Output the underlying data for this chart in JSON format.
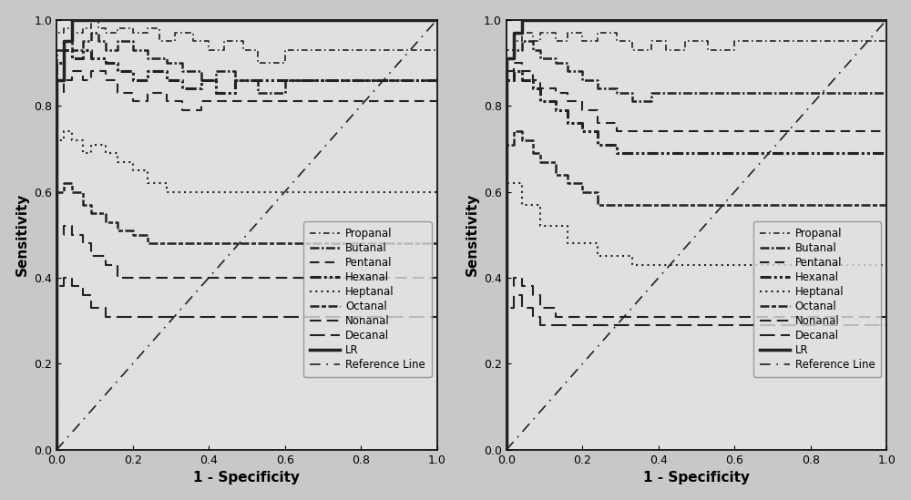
{
  "fig_width": 10.0,
  "fig_height": 5.49,
  "bg_color": "#c8c8c8",
  "plot_bg_color": "#e0e0e0",
  "line_color": "#222222",
  "xlabel": "1 - Specificity",
  "ylabel": "Sensitivity",
  "xlim": [
    0.0,
    1.0
  ],
  "ylim": [
    0.0,
    1.0
  ],
  "xticks": [
    0.0,
    0.2,
    0.4,
    0.6,
    0.8,
    1.0
  ],
  "yticks": [
    0.0,
    0.2,
    0.4,
    0.6,
    0.8,
    1.0
  ],
  "left_curves": {
    "LR": {
      "fpr": [
        0.0,
        0.0,
        0.02,
        0.02,
        0.04,
        0.04,
        1.0
      ],
      "tpr": [
        0.0,
        0.86,
        0.86,
        0.95,
        0.95,
        1.0,
        1.0
      ],
      "linestyle": "solid",
      "linewidth": 2.5,
      "zorder": 5
    },
    "Propanal": {
      "fpr": [
        0.0,
        0.0,
        0.02,
        0.02,
        0.04,
        0.04,
        0.07,
        0.07,
        0.09,
        0.09,
        0.11,
        0.11,
        0.13,
        0.13,
        0.16,
        0.16,
        0.2,
        0.2,
        0.24,
        0.24,
        0.27,
        0.27,
        0.31,
        0.31,
        0.36,
        0.36,
        0.4,
        0.4,
        0.44,
        0.44,
        0.49,
        0.49,
        0.53,
        0.53,
        0.6,
        0.6,
        1.0
      ],
      "tpr": [
        0.0,
        0.97,
        0.97,
        0.98,
        0.98,
        0.97,
        0.97,
        0.98,
        0.98,
        1.0,
        1.0,
        0.98,
        0.98,
        0.97,
        0.97,
        0.98,
        0.98,
        0.97,
        0.97,
        0.98,
        0.98,
        0.95,
        0.95,
        0.97,
        0.97,
        0.95,
        0.95,
        0.93,
        0.93,
        0.95,
        0.95,
        0.93,
        0.93,
        0.9,
        0.9,
        0.93,
        0.93
      ],
      "linestyle": "dashdot",
      "linewidth": 1.2,
      "zorder": 3
    },
    "Butanal": {
      "fpr": [
        0.0,
        0.0,
        0.02,
        0.02,
        0.04,
        0.04,
        0.07,
        0.07,
        0.09,
        0.09,
        0.11,
        0.11,
        0.13,
        0.13,
        0.16,
        0.16,
        0.2,
        0.2,
        0.24,
        0.24,
        0.29,
        0.29,
        0.33,
        0.33,
        0.38,
        0.38,
        0.42,
        0.42,
        0.47,
        0.47,
        0.53,
        0.53,
        0.6,
        0.6,
        1.0
      ],
      "tpr": [
        0.0,
        0.93,
        0.93,
        0.95,
        0.95,
        0.93,
        0.93,
        0.95,
        0.95,
        0.97,
        0.97,
        0.95,
        0.95,
        0.93,
        0.93,
        0.95,
        0.95,
        0.93,
        0.93,
        0.91,
        0.91,
        0.9,
        0.9,
        0.88,
        0.88,
        0.86,
        0.86,
        0.88,
        0.88,
        0.86,
        0.86,
        0.83,
        0.83,
        0.86,
        0.86
      ],
      "linestyle": "dashdot",
      "linewidth": 1.8,
      "zorder": 3
    },
    "Pentanal": {
      "fpr": [
        0.0,
        0.0,
        0.02,
        0.02,
        0.04,
        0.04,
        0.07,
        0.07,
        0.09,
        0.09,
        0.13,
        0.13,
        0.16,
        0.16,
        0.2,
        0.2,
        0.24,
        0.24,
        0.29,
        0.29,
        0.33,
        0.33,
        0.38,
        0.38,
        1.0
      ],
      "tpr": [
        0.0,
        0.83,
        0.83,
        0.86,
        0.86,
        0.88,
        0.88,
        0.86,
        0.86,
        0.88,
        0.88,
        0.86,
        0.86,
        0.83,
        0.83,
        0.81,
        0.81,
        0.83,
        0.83,
        0.81,
        0.81,
        0.79,
        0.79,
        0.81,
        0.81
      ],
      "linestyle": "dashed",
      "linewidth": 1.5,
      "zorder": 3
    },
    "Hexanal": {
      "fpr": [
        0.0,
        0.0,
        0.02,
        0.02,
        0.04,
        0.04,
        0.07,
        0.07,
        0.09,
        0.09,
        0.13,
        0.13,
        0.16,
        0.16,
        0.2,
        0.2,
        0.24,
        0.24,
        0.29,
        0.29,
        0.33,
        0.33,
        0.38,
        0.38,
        0.42,
        0.42,
        0.47,
        0.47,
        1.0
      ],
      "tpr": [
        0.0,
        0.9,
        0.9,
        0.93,
        0.93,
        0.91,
        0.91,
        0.93,
        0.93,
        0.91,
        0.91,
        0.9,
        0.9,
        0.88,
        0.88,
        0.86,
        0.86,
        0.88,
        0.88,
        0.86,
        0.86,
        0.84,
        0.84,
        0.86,
        0.86,
        0.83,
        0.83,
        0.86,
        0.86
      ],
      "linestyle": "dashdot",
      "linewidth": 2.2,
      "zorder": 3
    },
    "Heptanal": {
      "fpr": [
        0.0,
        0.0,
        0.02,
        0.02,
        0.04,
        0.04,
        0.07,
        0.07,
        0.09,
        0.09,
        0.13,
        0.13,
        0.16,
        0.16,
        0.2,
        0.2,
        0.24,
        0.24,
        0.29,
        0.29,
        1.0
      ],
      "tpr": [
        0.0,
        0.72,
        0.72,
        0.74,
        0.74,
        0.72,
        0.72,
        0.69,
        0.69,
        0.71,
        0.71,
        0.69,
        0.69,
        0.67,
        0.67,
        0.65,
        0.65,
        0.62,
        0.62,
        0.6,
        0.6
      ],
      "linestyle": "dotted",
      "linewidth": 1.5,
      "zorder": 3
    },
    "Octanal": {
      "fpr": [
        0.0,
        0.0,
        0.02,
        0.02,
        0.04,
        0.04,
        0.07,
        0.07,
        0.09,
        0.09,
        0.13,
        0.13,
        0.16,
        0.16,
        0.2,
        0.2,
        0.24,
        0.24,
        1.0
      ],
      "tpr": [
        0.0,
        0.6,
        0.6,
        0.62,
        0.62,
        0.6,
        0.6,
        0.57,
        0.57,
        0.55,
        0.55,
        0.53,
        0.53,
        0.51,
        0.51,
        0.5,
        0.5,
        0.48,
        0.48
      ],
      "linestyle": "dashdot",
      "linewidth": 1.8,
      "zorder": 3
    },
    "Nonanal": {
      "fpr": [
        0.0,
        0.0,
        0.02,
        0.02,
        0.04,
        0.04,
        0.07,
        0.07,
        0.09,
        0.09,
        0.13,
        0.13,
        0.16,
        0.16,
        1.0
      ],
      "tpr": [
        0.0,
        0.5,
        0.5,
        0.52,
        0.52,
        0.5,
        0.5,
        0.48,
        0.48,
        0.45,
        0.45,
        0.43,
        0.43,
        0.4,
        0.4
      ],
      "linestyle": "dashed",
      "linewidth": 1.5,
      "zorder": 3
    },
    "Decanal": {
      "fpr": [
        0.0,
        0.0,
        0.02,
        0.02,
        0.04,
        0.04,
        0.07,
        0.07,
        0.09,
        0.09,
        0.13,
        0.13,
        1.0
      ],
      "tpr": [
        0.0,
        0.38,
        0.38,
        0.4,
        0.4,
        0.38,
        0.38,
        0.36,
        0.36,
        0.33,
        0.33,
        0.31,
        0.31
      ],
      "linestyle": "dashed",
      "linewidth": 1.5,
      "zorder": 3
    }
  },
  "right_curves": {
    "LR": {
      "fpr": [
        0.0,
        0.0,
        0.02,
        0.02,
        0.04,
        0.04,
        1.0
      ],
      "tpr": [
        0.0,
        0.91,
        0.91,
        0.97,
        0.97,
        1.0,
        1.0
      ],
      "linestyle": "solid",
      "linewidth": 2.5,
      "zorder": 5
    },
    "Propanal": {
      "fpr": [
        0.0,
        0.0,
        0.02,
        0.02,
        0.04,
        0.04,
        0.07,
        0.07,
        0.09,
        0.09,
        0.13,
        0.13,
        0.16,
        0.16,
        0.2,
        0.2,
        0.24,
        0.24,
        0.29,
        0.29,
        0.33,
        0.33,
        0.38,
        0.38,
        0.42,
        0.42,
        0.47,
        0.47,
        0.53,
        0.53,
        0.6,
        0.6,
        1.0
      ],
      "tpr": [
        0.0,
        0.93,
        0.93,
        0.95,
        0.95,
        0.97,
        0.97,
        0.95,
        0.95,
        0.97,
        0.97,
        0.95,
        0.95,
        0.97,
        0.97,
        0.95,
        0.95,
        0.97,
        0.97,
        0.95,
        0.95,
        0.93,
        0.93,
        0.95,
        0.95,
        0.93,
        0.93,
        0.95,
        0.95,
        0.93,
        0.93,
        0.95,
        0.95
      ],
      "linestyle": "dashdot",
      "linewidth": 1.2,
      "zorder": 3
    },
    "Butanal": {
      "fpr": [
        0.0,
        0.0,
        0.02,
        0.02,
        0.04,
        0.04,
        0.07,
        0.07,
        0.09,
        0.09,
        0.13,
        0.13,
        0.16,
        0.16,
        0.2,
        0.2,
        0.24,
        0.24,
        0.29,
        0.29,
        0.33,
        0.33,
        0.38,
        0.38,
        1.0
      ],
      "tpr": [
        0.0,
        0.91,
        0.91,
        0.93,
        0.93,
        0.95,
        0.95,
        0.93,
        0.93,
        0.91,
        0.91,
        0.9,
        0.9,
        0.88,
        0.88,
        0.86,
        0.86,
        0.84,
        0.84,
        0.83,
        0.83,
        0.81,
        0.81,
        0.83,
        0.83
      ],
      "linestyle": "dashdot",
      "linewidth": 1.8,
      "zorder": 3
    },
    "Pentanal": {
      "fpr": [
        0.0,
        0.0,
        0.02,
        0.02,
        0.04,
        0.04,
        0.07,
        0.07,
        0.09,
        0.09,
        0.13,
        0.13,
        0.16,
        0.16,
        0.2,
        0.2,
        0.24,
        0.24,
        0.29,
        0.29,
        1.0
      ],
      "tpr": [
        0.0,
        0.88,
        0.88,
        0.9,
        0.9,
        0.88,
        0.88,
        0.86,
        0.86,
        0.84,
        0.84,
        0.83,
        0.83,
        0.81,
        0.81,
        0.79,
        0.79,
        0.76,
        0.76,
        0.74,
        0.74
      ],
      "linestyle": "dashed",
      "linewidth": 1.5,
      "zorder": 3
    },
    "Hexanal": {
      "fpr": [
        0.0,
        0.0,
        0.02,
        0.02,
        0.04,
        0.04,
        0.07,
        0.07,
        0.09,
        0.09,
        0.13,
        0.13,
        0.16,
        0.16,
        0.2,
        0.2,
        0.24,
        0.24,
        0.29,
        0.29,
        1.0
      ],
      "tpr": [
        0.0,
        0.86,
        0.86,
        0.88,
        0.88,
        0.86,
        0.86,
        0.84,
        0.84,
        0.81,
        0.81,
        0.79,
        0.79,
        0.76,
        0.76,
        0.74,
        0.74,
        0.71,
        0.71,
        0.69,
        0.69
      ],
      "linestyle": "dashdot",
      "linewidth": 2.2,
      "zorder": 3
    },
    "Heptanal": {
      "fpr": [
        0.0,
        0.0,
        0.04,
        0.04,
        0.09,
        0.09,
        0.16,
        0.16,
        0.24,
        0.24,
        0.33,
        0.33,
        1.0
      ],
      "tpr": [
        0.0,
        0.62,
        0.62,
        0.57,
        0.57,
        0.52,
        0.52,
        0.48,
        0.48,
        0.45,
        0.45,
        0.43,
        0.43
      ],
      "linestyle": "dotted",
      "linewidth": 1.5,
      "zorder": 3
    },
    "Octanal": {
      "fpr": [
        0.0,
        0.0,
        0.02,
        0.02,
        0.04,
        0.04,
        0.07,
        0.07,
        0.09,
        0.09,
        0.13,
        0.13,
        0.16,
        0.16,
        0.2,
        0.2,
        0.24,
        0.24,
        1.0
      ],
      "tpr": [
        0.0,
        0.71,
        0.71,
        0.74,
        0.74,
        0.72,
        0.72,
        0.69,
        0.69,
        0.67,
        0.67,
        0.64,
        0.64,
        0.62,
        0.62,
        0.6,
        0.6,
        0.57,
        0.57
      ],
      "linestyle": "dashdot",
      "linewidth": 1.8,
      "zorder": 3
    },
    "Nonanal": {
      "fpr": [
        0.0,
        0.0,
        0.02,
        0.02,
        0.04,
        0.04,
        0.07,
        0.07,
        0.09,
        0.09,
        0.13,
        0.13,
        1.0
      ],
      "tpr": [
        0.0,
        0.38,
        0.38,
        0.4,
        0.4,
        0.38,
        0.38,
        0.36,
        0.36,
        0.33,
        0.33,
        0.31,
        0.31
      ],
      "linestyle": "dashed",
      "linewidth": 1.5,
      "zorder": 3
    },
    "Decanal": {
      "fpr": [
        0.0,
        0.0,
        0.02,
        0.02,
        0.04,
        0.04,
        0.07,
        0.07,
        0.09,
        0.09,
        1.0
      ],
      "tpr": [
        0.0,
        0.33,
        0.33,
        0.36,
        0.36,
        0.33,
        0.33,
        0.31,
        0.31,
        0.29,
        0.29
      ],
      "linestyle": "dashed",
      "linewidth": 1.5,
      "zorder": 3
    }
  },
  "curve_order": [
    "Decanal",
    "Nonanal",
    "Octanal",
    "Heptanal",
    "Pentanal",
    "Hexanal",
    "Butanal",
    "Propanal",
    "LR"
  ]
}
